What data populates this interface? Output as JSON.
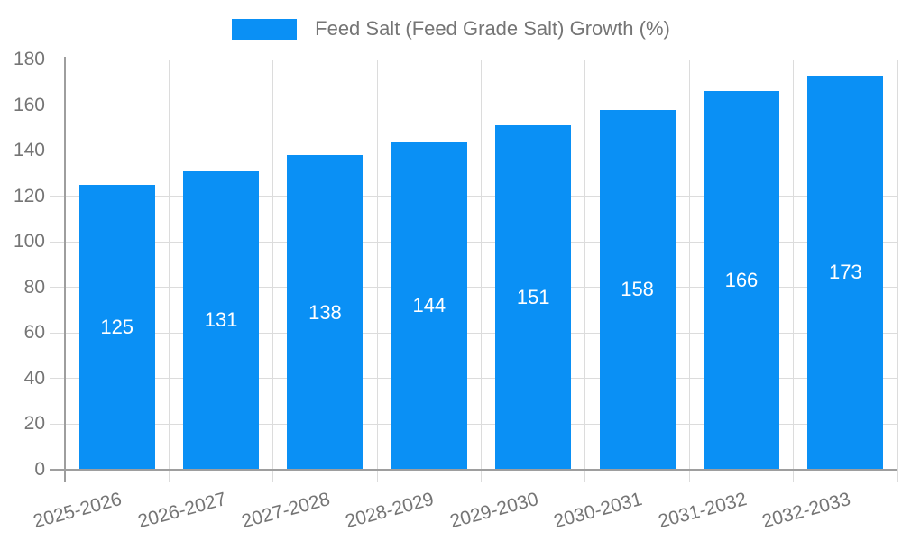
{
  "legend": {
    "label": "Feed Salt (Feed Grade Salt) Growth (%)"
  },
  "colors": {
    "bar": "#0a90f5",
    "axis": "#9e9e9e",
    "grid": "#dcdcdc",
    "text": "#757575",
    "value_text": "#ffffff",
    "background": "#ffffff"
  },
  "chart_data": {
    "type": "bar",
    "title": "Feed Salt (Feed Grade Salt) Growth (%)",
    "series_name": "Feed Salt (Feed Grade Salt) Growth (%)",
    "categories": [
      "2025-2026",
      "2026-2027",
      "2027-2028",
      "2028-2029",
      "2029-2030",
      "2030-2031",
      "2031-2032",
      "2032-2033"
    ],
    "values": [
      125,
      131,
      138,
      144,
      151,
      158,
      166,
      173
    ],
    "value_labels": [
      "125",
      "131",
      "138",
      "144",
      "151",
      "158",
      "166",
      "173"
    ],
    "ytick_labels": [
      "0",
      "20",
      "40",
      "60",
      "80",
      "100",
      "120",
      "140",
      "160",
      "180"
    ],
    "yticks": [
      0,
      20,
      40,
      60,
      80,
      100,
      120,
      140,
      160,
      180
    ],
    "ylim": [
      0,
      180
    ],
    "xlabel": "",
    "ylabel": "",
    "grid": true,
    "legend_position": "top",
    "value_label_position": "center-inside-bar"
  }
}
